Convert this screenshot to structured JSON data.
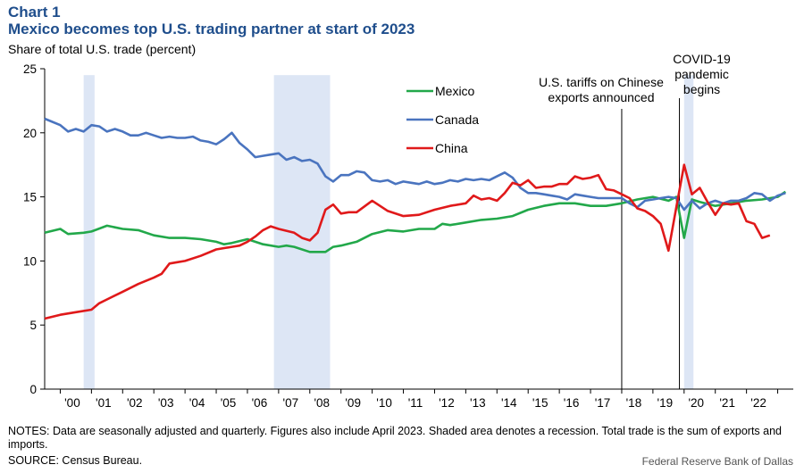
{
  "header": {
    "chart_number": "Chart 1",
    "title": "Mexico becomes top U.S. trading partner at start of 2023",
    "ylabel": "Share of total U.S. trade (percent)"
  },
  "footer": {
    "notes": "NOTES: Data are seasonally adjusted and quarterly. Figures also include April 2023. Shaded area denotes a recession. Total trade is the sum of exports and imports.",
    "source": "SOURCE: Census Bureau.",
    "credit": "Federal Reserve Bank of Dallas"
  },
  "chart_data": {
    "type": "line",
    "ylim": [
      0,
      25
    ],
    "yticks": [
      0,
      5,
      10,
      15,
      20,
      25
    ],
    "xrange": [
      1999.5,
      2023.5
    ],
    "xtick_labels": [
      "'00",
      "'01",
      "'02",
      "'03",
      "'04",
      "'05",
      "'06",
      "'07",
      "'08",
      "'09",
      "'10",
      "'11",
      "'12",
      "'13",
      "'14",
      "'15",
      "'16",
      "'17",
      "'18",
      "'19",
      "'20",
      "'21",
      "'22"
    ],
    "grid": false,
    "legend_position": "top-center",
    "recessions": [
      [
        2000.75,
        2001.1
      ],
      [
        2006.85,
        2008.65
      ],
      [
        2020.0,
        2020.3
      ]
    ],
    "annotations": [
      {
        "x": 2018.0,
        "lines": [
          "U.S. tariffs on Chinese",
          "exports announced"
        ]
      },
      {
        "x": 2019.85,
        "lines": [
          "COVID-19",
          "pandemic",
          "begins"
        ]
      }
    ],
    "series": [
      {
        "name": "Mexico",
        "color": "#22a84a",
        "points": [
          [
            1999.5,
            12.2
          ],
          [
            2000.0,
            12.5
          ],
          [
            2000.25,
            12.1
          ],
          [
            2000.75,
            12.2
          ],
          [
            2001.0,
            12.3
          ],
          [
            2001.5,
            12.75
          ],
          [
            2002.0,
            12.5
          ],
          [
            2002.5,
            12.4
          ],
          [
            2003.0,
            12.0
          ],
          [
            2003.5,
            11.8
          ],
          [
            2004.0,
            11.8
          ],
          [
            2004.5,
            11.7
          ],
          [
            2005.0,
            11.5
          ],
          [
            2005.25,
            11.3
          ],
          [
            2005.5,
            11.4
          ],
          [
            2006.0,
            11.7
          ],
          [
            2006.25,
            11.5
          ],
          [
            2006.5,
            11.3
          ],
          [
            2007.0,
            11.1
          ],
          [
            2007.25,
            11.2
          ],
          [
            2007.5,
            11.1
          ],
          [
            2008.0,
            10.7
          ],
          [
            2008.5,
            10.7
          ],
          [
            2008.75,
            11.1
          ],
          [
            2009.0,
            11.2
          ],
          [
            2009.5,
            11.5
          ],
          [
            2010.0,
            12.1
          ],
          [
            2010.5,
            12.4
          ],
          [
            2011.0,
            12.3
          ],
          [
            2011.5,
            12.5
          ],
          [
            2012.0,
            12.5
          ],
          [
            2012.25,
            12.9
          ],
          [
            2012.5,
            12.8
          ],
          [
            2013.0,
            13.0
          ],
          [
            2013.5,
            13.2
          ],
          [
            2014.0,
            13.3
          ],
          [
            2014.5,
            13.5
          ],
          [
            2015.0,
            14.0
          ],
          [
            2015.5,
            14.3
          ],
          [
            2016.0,
            14.5
          ],
          [
            2016.5,
            14.5
          ],
          [
            2017.0,
            14.3
          ],
          [
            2017.5,
            14.3
          ],
          [
            2018.0,
            14.5
          ],
          [
            2018.5,
            14.8
          ],
          [
            2019.0,
            15.0
          ],
          [
            2019.5,
            14.7
          ],
          [
            2019.75,
            15.0
          ],
          [
            2020.0,
            11.8
          ],
          [
            2020.25,
            14.8
          ],
          [
            2020.5,
            14.6
          ],
          [
            2021.0,
            14.3
          ],
          [
            2021.5,
            14.5
          ],
          [
            2022.0,
            14.7
          ],
          [
            2022.5,
            14.8
          ],
          [
            2023.0,
            15.0
          ],
          [
            2023.25,
            15.4
          ]
        ]
      },
      {
        "name": "Canada",
        "color": "#4a74bf",
        "points": [
          [
            1999.5,
            21.1
          ],
          [
            2000.0,
            20.6
          ],
          [
            2000.25,
            20.1
          ],
          [
            2000.5,
            20.3
          ],
          [
            2000.75,
            20.1
          ],
          [
            2001.0,
            20.6
          ],
          [
            2001.25,
            20.5
          ],
          [
            2001.5,
            20.1
          ],
          [
            2001.75,
            20.3
          ],
          [
            2002.0,
            20.1
          ],
          [
            2002.25,
            19.8
          ],
          [
            2002.5,
            19.8
          ],
          [
            2002.75,
            20.0
          ],
          [
            2003.0,
            19.8
          ],
          [
            2003.25,
            19.6
          ],
          [
            2003.5,
            19.7
          ],
          [
            2003.75,
            19.6
          ],
          [
            2004.0,
            19.6
          ],
          [
            2004.25,
            19.7
          ],
          [
            2004.5,
            19.4
          ],
          [
            2004.75,
            19.3
          ],
          [
            2005.0,
            19.1
          ],
          [
            2005.25,
            19.5
          ],
          [
            2005.5,
            20.0
          ],
          [
            2005.75,
            19.2
          ],
          [
            2006.0,
            18.7
          ],
          [
            2006.25,
            18.1
          ],
          [
            2006.5,
            18.2
          ],
          [
            2006.75,
            18.3
          ],
          [
            2007.0,
            18.4
          ],
          [
            2007.25,
            17.9
          ],
          [
            2007.5,
            18.1
          ],
          [
            2007.75,
            17.8
          ],
          [
            2008.0,
            17.9
          ],
          [
            2008.25,
            17.6
          ],
          [
            2008.5,
            16.6
          ],
          [
            2008.75,
            16.2
          ],
          [
            2009.0,
            16.7
          ],
          [
            2009.25,
            16.7
          ],
          [
            2009.5,
            17.0
          ],
          [
            2009.75,
            16.9
          ],
          [
            2010.0,
            16.3
          ],
          [
            2010.25,
            16.2
          ],
          [
            2010.5,
            16.3
          ],
          [
            2010.75,
            16.0
          ],
          [
            2011.0,
            16.2
          ],
          [
            2011.25,
            16.1
          ],
          [
            2011.5,
            16.0
          ],
          [
            2011.75,
            16.2
          ],
          [
            2012.0,
            16.0
          ],
          [
            2012.25,
            16.1
          ],
          [
            2012.5,
            16.3
          ],
          [
            2012.75,
            16.2
          ],
          [
            2013.0,
            16.4
          ],
          [
            2013.25,
            16.3
          ],
          [
            2013.5,
            16.4
          ],
          [
            2013.75,
            16.3
          ],
          [
            2014.0,
            16.6
          ],
          [
            2014.25,
            16.9
          ],
          [
            2014.5,
            16.5
          ],
          [
            2014.75,
            15.7
          ],
          [
            2015.0,
            15.3
          ],
          [
            2015.25,
            15.3
          ],
          [
            2015.5,
            15.2
          ],
          [
            2015.75,
            15.1
          ],
          [
            2016.0,
            15.0
          ],
          [
            2016.25,
            14.8
          ],
          [
            2016.5,
            15.2
          ],
          [
            2016.75,
            15.1
          ],
          [
            2017.0,
            15.0
          ],
          [
            2017.25,
            14.9
          ],
          [
            2017.5,
            14.9
          ],
          [
            2017.75,
            14.9
          ],
          [
            2018.0,
            14.9
          ],
          [
            2018.25,
            14.5
          ],
          [
            2018.5,
            14.2
          ],
          [
            2018.75,
            14.7
          ],
          [
            2019.0,
            14.8
          ],
          [
            2019.25,
            14.9
          ],
          [
            2019.5,
            15.0
          ],
          [
            2019.75,
            14.9
          ],
          [
            2020.0,
            14.0
          ],
          [
            2020.25,
            14.7
          ],
          [
            2020.5,
            14.1
          ],
          [
            2020.75,
            14.5
          ],
          [
            2021.0,
            14.7
          ],
          [
            2021.25,
            14.5
          ],
          [
            2021.5,
            14.7
          ],
          [
            2021.75,
            14.7
          ],
          [
            2022.0,
            14.9
          ],
          [
            2022.25,
            15.3
          ],
          [
            2022.5,
            15.2
          ],
          [
            2022.75,
            14.7
          ],
          [
            2023.0,
            15.1
          ],
          [
            2023.25,
            15.3
          ]
        ]
      },
      {
        "name": "China",
        "color": "#e0191a",
        "points": [
          [
            1999.5,
            5.5
          ],
          [
            2000.0,
            5.8
          ],
          [
            2000.5,
            6.0
          ],
          [
            2001.0,
            6.2
          ],
          [
            2001.25,
            6.7
          ],
          [
            2001.5,
            7.0
          ],
          [
            2002.0,
            7.6
          ],
          [
            2002.5,
            8.2
          ],
          [
            2003.0,
            8.7
          ],
          [
            2003.25,
            9.0
          ],
          [
            2003.5,
            9.8
          ],
          [
            2003.75,
            9.9
          ],
          [
            2004.0,
            10.0
          ],
          [
            2004.5,
            10.4
          ],
          [
            2005.0,
            10.9
          ],
          [
            2005.5,
            11.1
          ],
          [
            2005.75,
            11.2
          ],
          [
            2006.0,
            11.5
          ],
          [
            2006.25,
            11.9
          ],
          [
            2006.5,
            12.4
          ],
          [
            2006.75,
            12.7
          ],
          [
            2007.0,
            12.5
          ],
          [
            2007.5,
            12.2
          ],
          [
            2007.75,
            11.8
          ],
          [
            2008.0,
            11.6
          ],
          [
            2008.25,
            12.2
          ],
          [
            2008.5,
            14.0
          ],
          [
            2008.75,
            14.4
          ],
          [
            2009.0,
            13.7
          ],
          [
            2009.25,
            13.8
          ],
          [
            2009.5,
            13.8
          ],
          [
            2010.0,
            14.7
          ],
          [
            2010.5,
            13.9
          ],
          [
            2011.0,
            13.5
          ],
          [
            2011.5,
            13.6
          ],
          [
            2012.0,
            14.0
          ],
          [
            2012.5,
            14.3
          ],
          [
            2013.0,
            14.5
          ],
          [
            2013.25,
            15.1
          ],
          [
            2013.5,
            14.8
          ],
          [
            2013.75,
            14.9
          ],
          [
            2014.0,
            14.7
          ],
          [
            2014.25,
            15.3
          ],
          [
            2014.5,
            16.1
          ],
          [
            2014.75,
            15.9
          ],
          [
            2015.0,
            16.3
          ],
          [
            2015.25,
            15.7
          ],
          [
            2015.5,
            15.8
          ],
          [
            2015.75,
            15.8
          ],
          [
            2016.0,
            16.0
          ],
          [
            2016.25,
            16.0
          ],
          [
            2016.5,
            16.6
          ],
          [
            2016.75,
            16.4
          ],
          [
            2017.0,
            16.5
          ],
          [
            2017.25,
            16.7
          ],
          [
            2017.5,
            15.6
          ],
          [
            2017.75,
            15.5
          ],
          [
            2018.0,
            15.2
          ],
          [
            2018.25,
            14.9
          ],
          [
            2018.5,
            14.1
          ],
          [
            2018.75,
            13.9
          ],
          [
            2019.0,
            13.5
          ],
          [
            2019.25,
            12.9
          ],
          [
            2019.5,
            10.8
          ],
          [
            2019.75,
            14.2
          ],
          [
            2020.0,
            17.5
          ],
          [
            2020.25,
            15.2
          ],
          [
            2020.5,
            15.7
          ],
          [
            2020.75,
            14.6
          ],
          [
            2021.0,
            13.6
          ],
          [
            2021.25,
            14.5
          ],
          [
            2021.5,
            14.4
          ],
          [
            2021.75,
            14.5
          ],
          [
            2022.0,
            13.1
          ],
          [
            2022.25,
            12.9
          ],
          [
            2022.5,
            11.8
          ],
          [
            2022.75,
            12.0
          ]
        ]
      }
    ]
  }
}
